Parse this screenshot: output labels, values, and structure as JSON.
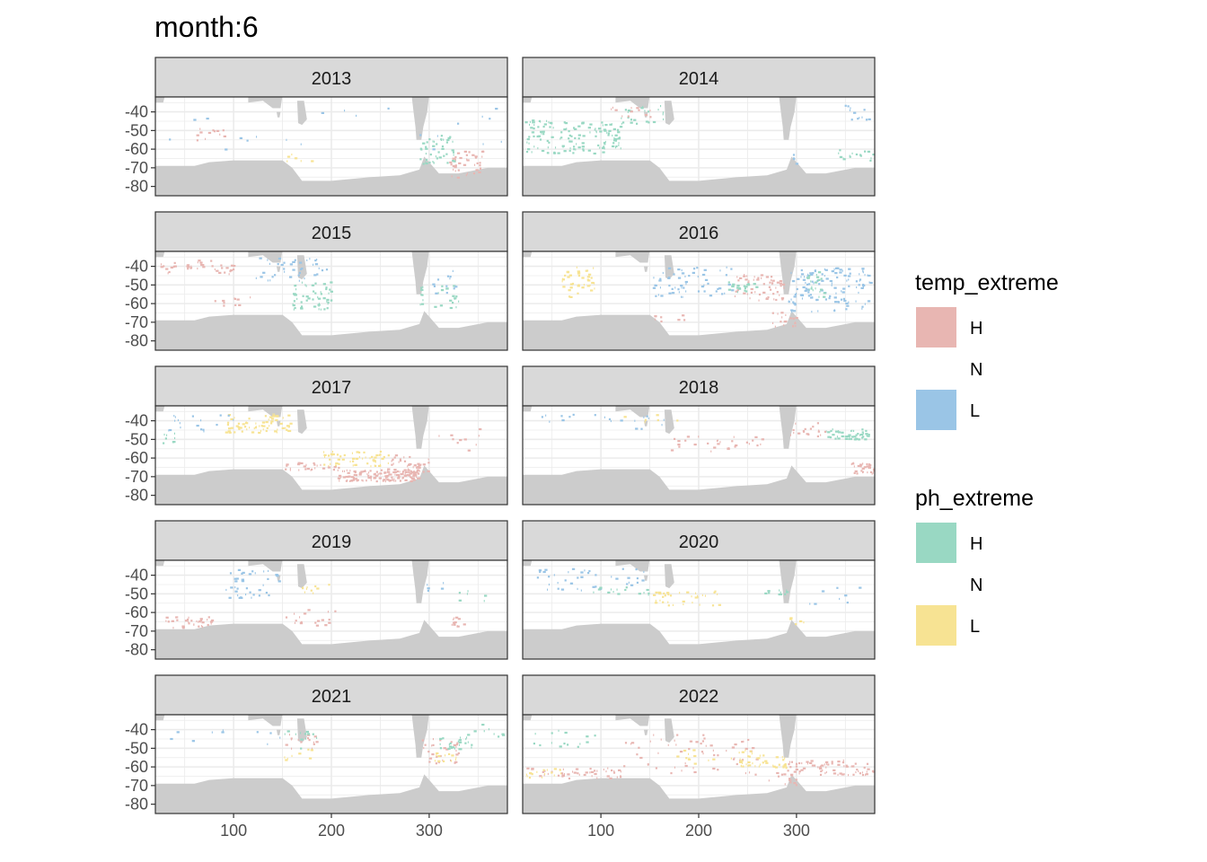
{
  "chart_data": {
    "type": "heatmap",
    "title": "month:6",
    "xlabel": "",
    "ylabel": "",
    "xlim": [
      20,
      380
    ],
    "ylim": [
      -85,
      -32
    ],
    "x_ticks": [
      100,
      200,
      300
    ],
    "x_tick_labels": [
      "100",
      "200",
      "300"
    ],
    "y_ticks": [
      -40,
      -50,
      -60,
      -70,
      -80
    ],
    "y_tick_labels": [
      "-40",
      "-50",
      "-60",
      "-70",
      "-80"
    ],
    "grid": true,
    "legend_position": "right",
    "land_color": "#cccccc",
    "panels": [
      {
        "label": "2013",
        "regions": [
          {
            "layer": "ph",
            "cls": "H",
            "x": [
              290,
              325
            ],
            "y": [
              -68,
              -52
            ],
            "n": 45
          },
          {
            "layer": "temp",
            "cls": "H",
            "x": [
              320,
              355
            ],
            "y": [
              -75,
              -60
            ],
            "n": 40
          },
          {
            "layer": "temp",
            "cls": "L",
            "x": [
              25,
              375
            ],
            "y": [
              -60,
              -36
            ],
            "n": 22
          },
          {
            "layer": "temp",
            "cls": "H",
            "x": [
              60,
              90
            ],
            "y": [
              -55,
              -48
            ],
            "n": 12
          },
          {
            "layer": "ph",
            "cls": "L",
            "x": [
              150,
              180
            ],
            "y": [
              -66,
              -62
            ],
            "n": 6
          }
        ]
      },
      {
        "label": "2014",
        "regions": [
          {
            "layer": "ph",
            "cls": "H",
            "x": [
              22,
              120
            ],
            "y": [
              -62,
              -44
            ],
            "n": 140
          },
          {
            "layer": "ph",
            "cls": "H",
            "x": [
              120,
              165
            ],
            "y": [
              -46,
              -36
            ],
            "n": 25
          },
          {
            "layer": "temp",
            "cls": "L",
            "x": [
              345,
              375
            ],
            "y": [
              -44,
              -36
            ],
            "n": 12
          },
          {
            "layer": "ph",
            "cls": "H",
            "x": [
              340,
              378
            ],
            "y": [
              -66,
              -60
            ],
            "n": 16
          },
          {
            "layer": "temp",
            "cls": "H",
            "x": [
              110,
              150
            ],
            "y": [
              -44,
              -36
            ],
            "n": 12
          },
          {
            "layer": "temp",
            "cls": "L",
            "x": [
              290,
              300
            ],
            "y": [
              -68,
              -62
            ],
            "n": 4
          }
        ]
      },
      {
        "label": "2015",
        "regions": [
          {
            "layer": "temp",
            "cls": "H",
            "x": [
              25,
              100
            ],
            "y": [
              -44,
              -36
            ],
            "n": 40
          },
          {
            "layer": "temp",
            "cls": "L",
            "x": [
              120,
              195
            ],
            "y": [
              -48,
              -35
            ],
            "n": 40
          },
          {
            "layer": "ph",
            "cls": "H",
            "x": [
              160,
              200
            ],
            "y": [
              -63,
              -48
            ],
            "n": 55
          },
          {
            "layer": "ph",
            "cls": "H",
            "x": [
              290,
              330
            ],
            "y": [
              -62,
              -50
            ],
            "n": 25
          },
          {
            "layer": "temp",
            "cls": "L",
            "x": [
              300,
              330
            ],
            "y": [
              -54,
              -42
            ],
            "n": 12
          },
          {
            "layer": "temp",
            "cls": "H",
            "x": [
              80,
              120
            ],
            "y": [
              -62,
              -56
            ],
            "n": 10
          }
        ]
      },
      {
        "label": "2016",
        "regions": [
          {
            "layer": "ph",
            "cls": "L",
            "x": [
              60,
              95
            ],
            "y": [
              -56,
              -40
            ],
            "n": 40
          },
          {
            "layer": "temp",
            "cls": "L",
            "x": [
              150,
              240
            ],
            "y": [
              -56,
              -40
            ],
            "n": 60
          },
          {
            "layer": "temp",
            "cls": "L",
            "x": [
              290,
              375
            ],
            "y": [
              -64,
              -40
            ],
            "n": 130
          },
          {
            "layer": "temp",
            "cls": "H",
            "x": [
              235,
              290
            ],
            "y": [
              -58,
              -44
            ],
            "n": 55
          },
          {
            "layer": "ph",
            "cls": "H",
            "x": [
              230,
              260
            ],
            "y": [
              -54,
              -48
            ],
            "n": 20
          },
          {
            "layer": "ph",
            "cls": "H",
            "x": [
              310,
              330
            ],
            "y": [
              -56,
              -42
            ],
            "n": 20
          },
          {
            "layer": "temp",
            "cls": "H",
            "x": [
              270,
              300
            ],
            "y": [
              -72,
              -64
            ],
            "n": 18
          },
          {
            "layer": "temp",
            "cls": "H",
            "x": [
              150,
              190
            ],
            "y": [
              -70,
              -64
            ],
            "n": 8
          }
        ]
      },
      {
        "label": "2017",
        "regions": [
          {
            "layer": "ph",
            "cls": "L",
            "x": [
              90,
              160
            ],
            "y": [
              -46,
              -36
            ],
            "n": 70
          },
          {
            "layer": "ph",
            "cls": "L",
            "x": [
              190,
              260
            ],
            "y": [
              -64,
              -56
            ],
            "n": 55
          },
          {
            "layer": "temp",
            "cls": "H",
            "x": [
              205,
              290
            ],
            "y": [
              -72,
              -66
            ],
            "n": 130
          },
          {
            "layer": "temp",
            "cls": "H",
            "x": [
              255,
              300
            ],
            "y": [
              -70,
              -58
            ],
            "n": 50
          },
          {
            "layer": "temp",
            "cls": "H",
            "x": [
              150,
              210
            ],
            "y": [
              -66,
              -62
            ],
            "n": 25
          },
          {
            "layer": "temp",
            "cls": "L",
            "x": [
              30,
              100
            ],
            "y": [
              -46,
              -36
            ],
            "n": 18
          },
          {
            "layer": "ph",
            "cls": "H",
            "x": [
              25,
              40
            ],
            "y": [
              -52,
              -46
            ],
            "n": 8
          },
          {
            "layer": "temp",
            "cls": "H",
            "x": [
              300,
              355
            ],
            "y": [
              -56,
              -44
            ],
            "n": 10
          }
        ]
      },
      {
        "label": "2018",
        "regions": [
          {
            "layer": "ph",
            "cls": "H",
            "x": [
              330,
              375
            ],
            "y": [
              -50,
              -44
            ],
            "n": 45
          },
          {
            "layer": "temp",
            "cls": "H",
            "x": [
              350,
              380
            ],
            "y": [
              -68,
              -62
            ],
            "n": 30
          },
          {
            "layer": "temp",
            "cls": "H",
            "x": [
              290,
              330
            ],
            "y": [
              -50,
              -40
            ],
            "n": 18
          },
          {
            "layer": "temp",
            "cls": "H",
            "x": [
              170,
              270
            ],
            "y": [
              -56,
              -48
            ],
            "n": 30
          },
          {
            "layer": "temp",
            "cls": "L",
            "x": [
              25,
              200
            ],
            "y": [
              -44,
              -36
            ],
            "n": 20
          },
          {
            "layer": "ph",
            "cls": "L",
            "x": [
              100,
              180
            ],
            "y": [
              -42,
              -36
            ],
            "n": 6
          }
        ]
      },
      {
        "label": "2019",
        "regions": [
          {
            "layer": "temp",
            "cls": "H",
            "x": [
              30,
              80
            ],
            "y": [
              -68,
              -62
            ],
            "n": 35
          },
          {
            "layer": "temp",
            "cls": "L",
            "x": [
              90,
              150
            ],
            "y": [
              -52,
              -36
            ],
            "n": 40
          },
          {
            "layer": "temp",
            "cls": "H",
            "x": [
              320,
              335
            ],
            "y": [
              -68,
              -62
            ],
            "n": 12
          },
          {
            "layer": "temp",
            "cls": "H",
            "x": [
              150,
              210
            ],
            "y": [
              -68,
              -58
            ],
            "n": 18
          },
          {
            "layer": "ph",
            "cls": "L",
            "x": [
              160,
              200
            ],
            "y": [
              -50,
              -44
            ],
            "n": 10
          },
          {
            "layer": "ph",
            "cls": "H",
            "x": [
              330,
              360
            ],
            "y": [
              -54,
              -48
            ],
            "n": 6
          },
          {
            "layer": "temp",
            "cls": "L",
            "x": [
              295,
              320
            ],
            "y": [
              -48,
              -42
            ],
            "n": 6
          }
        ]
      },
      {
        "label": "2020",
        "regions": [
          {
            "layer": "temp",
            "cls": "L",
            "x": [
              30,
              150
            ],
            "y": [
              -48,
              -36
            ],
            "n": 40
          },
          {
            "layer": "ph",
            "cls": "L",
            "x": [
              150,
              220
            ],
            "y": [
              -56,
              -48
            ],
            "n": 35
          },
          {
            "layer": "ph",
            "cls": "H",
            "x": [
              90,
              150
            ],
            "y": [
              -50,
              -46
            ],
            "n": 15
          },
          {
            "layer": "ph",
            "cls": "H",
            "x": [
              260,
              290
            ],
            "y": [
              -50,
              -46
            ],
            "n": 10
          },
          {
            "layer": "temp",
            "cls": "L",
            "x": [
              310,
              370
            ],
            "y": [
              -56,
              -46
            ],
            "n": 8
          },
          {
            "layer": "ph",
            "cls": "L",
            "x": [
              290,
              310
            ],
            "y": [
              -66,
              -62
            ],
            "n": 5
          }
        ]
      },
      {
        "label": "2021",
        "regions": [
          {
            "layer": "temp",
            "cls": "H",
            "x": [
              290,
              330
            ],
            "y": [
              -58,
              -44
            ],
            "n": 30
          },
          {
            "layer": "ph",
            "cls": "H",
            "x": [
              310,
              345
            ],
            "y": [
              -50,
              -42
            ],
            "n": 25
          },
          {
            "layer": "ph",
            "cls": "L",
            "x": [
              305,
              330
            ],
            "y": [
              -58,
              -52
            ],
            "n": 12
          },
          {
            "layer": "temp",
            "cls": "H",
            "x": [
              150,
              190
            ],
            "y": [
              -50,
              -42
            ],
            "n": 15
          },
          {
            "layer": "ph",
            "cls": "H",
            "x": [
              150,
              185
            ],
            "y": [
              -50,
              -40
            ],
            "n": 12
          },
          {
            "layer": "ph",
            "cls": "L",
            "x": [
              150,
              185
            ],
            "y": [
              -56,
              -50
            ],
            "n": 8
          },
          {
            "layer": "temp",
            "cls": "L",
            "x": [
              30,
              150
            ],
            "y": [
              -48,
              -36
            ],
            "n": 10
          },
          {
            "layer": "ph",
            "cls": "H",
            "x": [
              345,
              375
            ],
            "y": [
              -44,
              -36
            ],
            "n": 8
          }
        ]
      },
      {
        "label": "2022",
        "regions": [
          {
            "layer": "temp",
            "cls": "H",
            "x": [
              22,
              120
            ],
            "y": [
              -66,
              -60
            ],
            "n": 50
          },
          {
            "layer": "temp",
            "cls": "H",
            "x": [
              290,
              378
            ],
            "y": [
              -64,
              -56
            ],
            "n": 70
          },
          {
            "layer": "ph",
            "cls": "L",
            "x": [
              240,
              290
            ],
            "y": [
              -60,
              -52
            ],
            "n": 35
          },
          {
            "layer": "ph",
            "cls": "L",
            "x": [
              22,
              60
            ],
            "y": [
              -66,
              -60
            ],
            "n": 15
          },
          {
            "layer": "temp",
            "cls": "H",
            "x": [
              120,
              260
            ],
            "y": [
              -64,
              -42
            ],
            "n": 60
          },
          {
            "layer": "ph",
            "cls": "H",
            "x": [
              30,
              100
            ],
            "y": [
              -50,
              -40
            ],
            "n": 15
          },
          {
            "layer": "ph",
            "cls": "L",
            "x": [
              170,
              260
            ],
            "y": [
              -58,
              -50
            ],
            "n": 20
          },
          {
            "layer": "temp",
            "cls": "H",
            "x": [
              270,
              300
            ],
            "y": [
              -70,
              -62
            ],
            "n": 15
          }
        ]
      }
    ]
  },
  "legends": [
    {
      "title": "temp_extreme",
      "layer": "temp",
      "items": [
        {
          "label": "H",
          "color": "#e8b6b2"
        },
        {
          "label": "N",
          "color": null
        },
        {
          "label": "L",
          "color": "#9ac5e6"
        }
      ]
    },
    {
      "title": "ph_extreme",
      "layer": "ph",
      "items": [
        {
          "label": "H",
          "color": "#99d8c3"
        },
        {
          "label": "N",
          "color": null
        },
        {
          "label": "L",
          "color": "#f7e393"
        }
      ]
    }
  ]
}
